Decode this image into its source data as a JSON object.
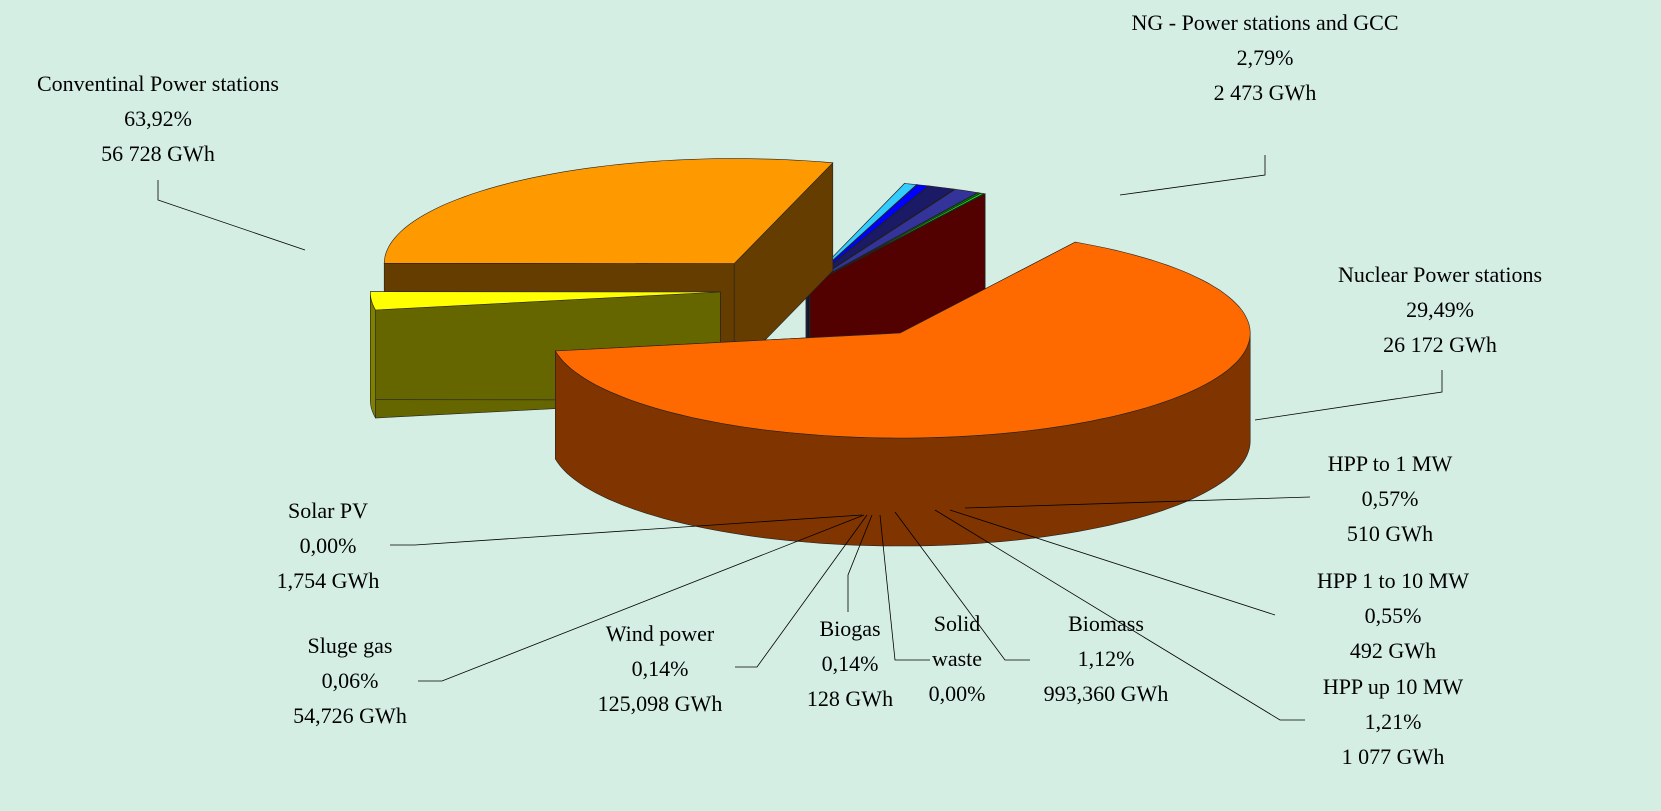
{
  "chart_data": {
    "type": "pie3d",
    "categories": [
      "Conventinal Power stations",
      "NG - Power stations and GCC",
      "Nuclear Power stations",
      "HPP to 1 MW",
      "HPP 1 to 10 MW",
      "HPP up 10 MW",
      "Biomass",
      "Solid waste",
      "Biogas",
      "Wind power",
      "Sluge gas",
      "Solar PV"
    ],
    "values": [
      63.92,
      2.79,
      29.49,
      0.57,
      0.55,
      1.21,
      1.12,
      0.0,
      0.14,
      0.14,
      0.06,
      0.0
    ],
    "value_labels": [
      "63,92%",
      "2,79%",
      "29,49%",
      "0,57%",
      "0,55%",
      "1,21%",
      "1,12%",
      "0,00%",
      "0,14%",
      "0,14%",
      "0,06%",
      "0,00%"
    ],
    "energy_labels": [
      "56 728 GWh",
      "2 473 GWh",
      "26 172 GWh",
      "510 GWh",
      "492 GWh",
      "1 077 GWh",
      "993,360 GWh",
      null,
      "128 GWh",
      "125,098 GWh",
      "54,726 GWh",
      "1,754 GWh"
    ],
    "colors": [
      "#ff6a00",
      "#ffff00",
      "#ff9900",
      "#33ccff",
      "#0000ff",
      "#1a1a66",
      "#333399",
      "#808080",
      "#008000",
      "#00ff00",
      "#ffff00",
      "#cc0000"
    ]
  }
}
